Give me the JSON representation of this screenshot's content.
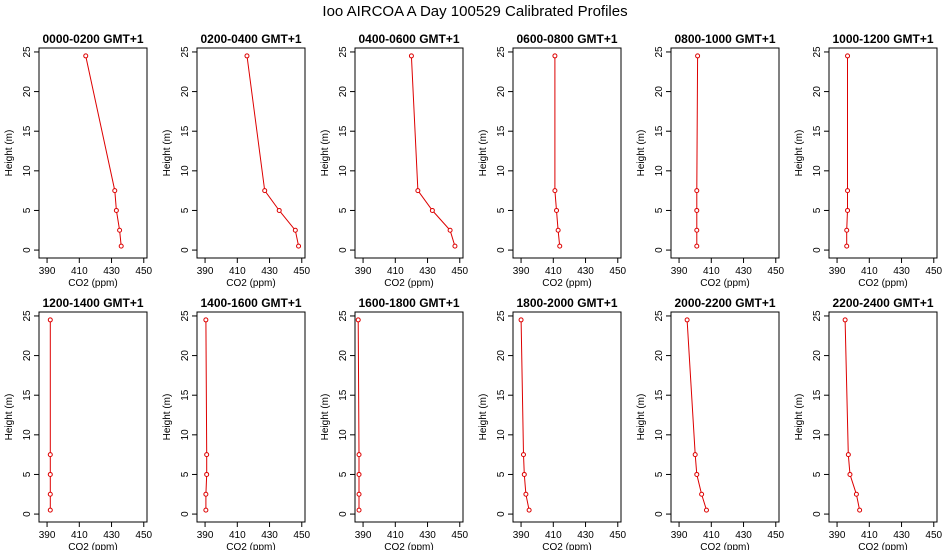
{
  "figure_title": "Ioo AIRCOA A  Day 100529  Calibrated Profiles",
  "colors": {
    "profile": "#dd0000",
    "axes": "#000000"
  },
  "chart_data": [
    {
      "type": "line",
      "title": "0000-0200 GMT+1",
      "xlabel": "CO2 (ppm)",
      "ylabel": "Height (m)",
      "xlim": [
        385,
        452
      ],
      "ylim": [
        -1,
        25.5
      ],
      "xticks": [
        390,
        410,
        430,
        450
      ],
      "xtick_labels": [
        "390",
        "410",
        "430",
        "450"
      ],
      "yticks": [
        0,
        5,
        10,
        15,
        20,
        25
      ],
      "x": [
        436,
        435,
        433,
        432,
        414
      ],
      "y": [
        0.5,
        2.5,
        5,
        7.5,
        24.5
      ]
    },
    {
      "type": "line",
      "title": "0200-0400 GMT+1",
      "xlabel": "CO2 (ppm)",
      "ylabel": "Height (m)",
      "xlim": [
        385,
        452
      ],
      "ylim": [
        -1,
        25.5
      ],
      "xticks": [
        390,
        410,
        430,
        450
      ],
      "xtick_labels": [
        "390",
        "410",
        "430",
        "450"
      ],
      "yticks": [
        0,
        5,
        10,
        15,
        20,
        25
      ],
      "x": [
        448,
        446,
        436,
        427,
        416
      ],
      "y": [
        0.5,
        2.5,
        5,
        7.5,
        24.5
      ]
    },
    {
      "type": "line",
      "title": "0400-0600 GMT+1",
      "xlabel": "CO2 (ppm)",
      "ylabel": "Height (m)",
      "xlim": [
        385,
        452
      ],
      "ylim": [
        -1,
        25.5
      ],
      "xticks": [
        390,
        410,
        430,
        450
      ],
      "xtick_labels": [
        "390",
        "410",
        "430",
        "450"
      ],
      "yticks": [
        0,
        5,
        10,
        15,
        20,
        25
      ],
      "x": [
        447,
        444,
        433,
        424,
        420
      ],
      "y": [
        0.5,
        2.5,
        5,
        7.5,
        24.5
      ]
    },
    {
      "type": "line",
      "title": "0600-0800 GMT+1",
      "xlabel": "CO2 (ppm)",
      "ylabel": "Height (m)",
      "xlim": [
        385,
        452
      ],
      "ylim": [
        -1,
        25.5
      ],
      "xticks": [
        390,
        410,
        430,
        450
      ],
      "xtick_labels": [
        "390",
        "410",
        "430",
        "450"
      ],
      "yticks": [
        0,
        5,
        10,
        15,
        20,
        25
      ],
      "x": [
        414,
        413,
        412,
        411,
        411
      ],
      "y": [
        0.5,
        2.5,
        5,
        7.5,
        24.5
      ]
    },
    {
      "type": "line",
      "title": "0800-1000 GMT+1",
      "xlabel": "CO2 (ppm)",
      "ylabel": "Height (m)",
      "xlim": [
        385,
        452
      ],
      "ylim": [
        -1,
        25.5
      ],
      "xticks": [
        390,
        410,
        430,
        450
      ],
      "xtick_labels": [
        "390",
        "410",
        "430",
        "450"
      ],
      "yticks": [
        0,
        5,
        10,
        15,
        20,
        25
      ],
      "x": [
        401,
        401,
        401,
        401,
        401.5
      ],
      "y": [
        0.5,
        2.5,
        5,
        7.5,
        24.5
      ]
    },
    {
      "type": "line",
      "title": "1000-1200 GMT+1",
      "xlabel": "CO2 (ppm)",
      "ylabel": "Height (m)",
      "xlim": [
        385,
        452
      ],
      "ylim": [
        -1,
        25.5
      ],
      "xticks": [
        390,
        410,
        430,
        450
      ],
      "xtick_labels": [
        "390",
        "410",
        "430",
        "450"
      ],
      "yticks": [
        0,
        5,
        10,
        15,
        20,
        25
      ],
      "x": [
        396,
        396,
        396.5,
        396.5,
        396.5
      ],
      "y": [
        0.5,
        2.5,
        5,
        7.5,
        24.5
      ]
    },
    {
      "type": "line",
      "title": "1200-1400 GMT+1",
      "xlabel": "CO2 (ppm)",
      "ylabel": "Height (m)",
      "xlim": [
        385,
        452
      ],
      "ylim": [
        -1,
        25.5
      ],
      "xticks": [
        390,
        410,
        430,
        450
      ],
      "xtick_labels": [
        "390",
        "410",
        "430",
        "450"
      ],
      "yticks": [
        0,
        5,
        10,
        15,
        20,
        25
      ],
      "x": [
        392,
        392,
        392,
        392,
        392
      ],
      "y": [
        0.5,
        2.5,
        5,
        7.5,
        24.5
      ]
    },
    {
      "type": "line",
      "title": "1400-1600 GMT+1",
      "xlabel": "CO2 (ppm)",
      "ylabel": "Height (m)",
      "xlim": [
        385,
        452
      ],
      "ylim": [
        -1,
        25.5
      ],
      "xticks": [
        390,
        410,
        430,
        450
      ],
      "xtick_labels": [
        "390",
        "410",
        "430",
        "450"
      ],
      "yticks": [
        0,
        5,
        10,
        15,
        20,
        25
      ],
      "x": [
        390.5,
        390.5,
        391,
        391,
        390.5
      ],
      "y": [
        0.5,
        2.5,
        5,
        7.5,
        24.5
      ]
    },
    {
      "type": "line",
      "title": "1600-1800 GMT+1",
      "xlabel": "CO2 (ppm)",
      "ylabel": "Height (m)",
      "xlim": [
        385,
        452
      ],
      "ylim": [
        -1,
        25.5
      ],
      "xticks": [
        390,
        410,
        430,
        450
      ],
      "xtick_labels": [
        "390",
        "410",
        "430",
        "450"
      ],
      "yticks": [
        0,
        5,
        10,
        15,
        20,
        25
      ],
      "x": [
        387.5,
        387.5,
        387.5,
        387.5,
        387
      ],
      "y": [
        0.5,
        2.5,
        5,
        7.5,
        24.5
      ]
    },
    {
      "type": "line",
      "title": "1800-2000 GMT+1",
      "xlabel": "CO2 (ppm)",
      "ylabel": "Height (m)",
      "xlim": [
        385,
        452
      ],
      "ylim": [
        -1,
        25.5
      ],
      "xticks": [
        390,
        410,
        430,
        450
      ],
      "xtick_labels": [
        "390",
        "410",
        "430",
        "450"
      ],
      "yticks": [
        0,
        5,
        10,
        15,
        20,
        25
      ],
      "x": [
        395,
        393,
        392,
        391.5,
        390
      ],
      "y": [
        0.5,
        2.5,
        5,
        7.5,
        24.5
      ]
    },
    {
      "type": "line",
      "title": "2000-2200 GMT+1",
      "xlabel": "CO2 (ppm)",
      "ylabel": "Height (m)",
      "xlim": [
        385,
        452
      ],
      "ylim": [
        -1,
        25.5
      ],
      "xticks": [
        390,
        410,
        430,
        450
      ],
      "xtick_labels": [
        "390",
        "410",
        "430",
        "450"
      ],
      "yticks": [
        0,
        5,
        10,
        15,
        20,
        25
      ],
      "x": [
        407,
        404,
        401,
        400,
        395
      ],
      "y": [
        0.5,
        2.5,
        5,
        7.5,
        24.5
      ]
    },
    {
      "type": "line",
      "title": "2200-2400 GMT+1",
      "xlabel": "CO2 (ppm)",
      "ylabel": "Height (m)",
      "xlim": [
        385,
        452
      ],
      "ylim": [
        -1,
        25.5
      ],
      "xticks": [
        390,
        410,
        430,
        450
      ],
      "xtick_labels": [
        "390",
        "410",
        "430",
        "450"
      ],
      "yticks": [
        0,
        5,
        10,
        15,
        20,
        25
      ],
      "x": [
        404,
        402,
        398,
        397,
        395
      ],
      "y": [
        0.5,
        2.5,
        5,
        7.5,
        24.5
      ]
    }
  ]
}
